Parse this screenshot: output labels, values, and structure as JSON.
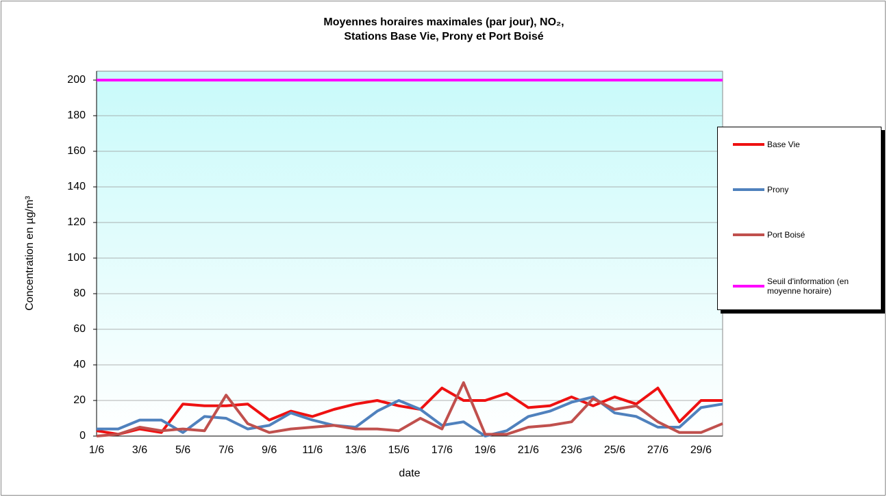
{
  "chart_data": {
    "type": "line",
    "title": "Moyennes horaires maximales (par jour), NO₂,",
    "subtitle": "Stations Base Vie, Prony et Port Boisé",
    "x_label": "date",
    "y_label": "Concentration en µg/m³",
    "categories": [
      "1/6",
      null,
      "3/6",
      null,
      "5/6",
      null,
      "7/6",
      null,
      "9/6",
      null,
      "11/6",
      null,
      "13/6",
      null,
      "15/6",
      null,
      "17/6",
      null,
      "19/6",
      null,
      "21/6",
      null,
      "23/6",
      null,
      "25/6",
      null,
      "27/6",
      null,
      "29/6",
      null
    ],
    "series": [
      {
        "name": "Base Vie",
        "color": "#ee1111",
        "values": [
          3,
          1,
          4,
          2,
          18,
          17,
          17,
          18,
          9,
          14,
          11,
          15,
          18,
          20,
          17,
          15,
          27,
          20,
          20,
          24,
          16,
          17,
          22,
          17,
          22,
          18,
          27,
          8,
          20,
          20
        ]
      },
      {
        "name": "Prony",
        "color": "#4f81bd",
        "values": [
          4,
          4,
          9,
          9,
          2,
          11,
          10,
          4,
          6,
          13,
          9,
          6,
          5,
          14,
          20,
          15,
          6,
          8,
          0,
          3,
          11,
          14,
          19,
          22,
          13,
          11,
          5,
          5,
          16,
          18
        ]
      },
      {
        "name": "Port Boisé",
        "color": "#c0504d",
        "values": [
          0,
          1,
          5,
          3,
          4,
          3,
          23,
          7,
          2,
          4,
          5,
          6,
          4,
          4,
          3,
          10,
          4,
          30,
          1,
          1,
          5,
          6,
          8,
          21,
          15,
          17,
          8,
          2,
          2,
          7
        ]
      },
      {
        "name": "Seuil d'information (en moyenne horaire)",
        "color": "#ff00ff",
        "values": [
          200,
          200,
          200,
          200,
          200,
          200,
          200,
          200,
          200,
          200,
          200,
          200,
          200,
          200,
          200,
          200,
          200,
          200,
          200,
          200,
          200,
          200,
          200,
          200,
          200,
          200,
          200,
          200,
          200,
          200
        ]
      }
    ],
    "ylim": [
      0,
      205
    ],
    "yticks": [
      0,
      20,
      40,
      60,
      80,
      100,
      120,
      140,
      160,
      180,
      200
    ],
    "grid": true,
    "legend": "right"
  }
}
